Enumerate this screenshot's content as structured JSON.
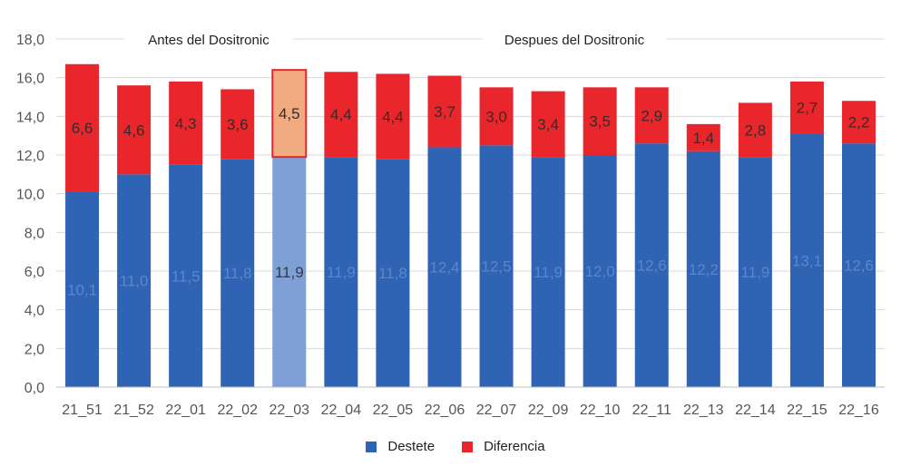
{
  "chart_data": {
    "type": "bar",
    "stacked": true,
    "categories": [
      "21_51",
      "21_52",
      "22_01",
      "22_02",
      "22_03",
      "22_04",
      "22_05",
      "22_06",
      "22_07",
      "22_09",
      "22_10",
      "22_11",
      "22_13",
      "22_14",
      "22_15",
      "22_16"
    ],
    "series": [
      {
        "name": "Destete",
        "color": "#2f63b4",
        "values": [
          10.1,
          11.0,
          11.5,
          11.8,
          11.9,
          11.9,
          11.8,
          12.4,
          12.5,
          11.9,
          12.0,
          12.6,
          12.2,
          11.9,
          13.1,
          12.6
        ],
        "labels": [
          "10,1",
          "11,0",
          "11,5",
          "11,8",
          "11,9",
          "11,9",
          "11,8",
          "12,4",
          "12,5",
          "11,9",
          "12,0",
          "12,6",
          "12,2",
          "11,9",
          "13,1",
          "12,6"
        ]
      },
      {
        "name": "Diferencia",
        "color": "#e8262b",
        "values": [
          6.6,
          4.6,
          4.3,
          3.6,
          4.5,
          4.4,
          4.4,
          3.7,
          3.0,
          3.4,
          3.5,
          2.9,
          1.4,
          2.8,
          2.7,
          2.2
        ],
        "labels": [
          "6,6",
          "4,6",
          "4,3",
          "3,6",
          "4,5",
          "4,4",
          "4,4",
          "3,7",
          "3,0",
          "3,4",
          "3,5",
          "2,9",
          "1,4",
          "2,8",
          "2,7",
          "2,2"
        ]
      }
    ],
    "highlight_category": "22_03",
    "highlight_colors": {
      "Destete": "#7ea0d6",
      "Diferencia": "#efaa80",
      "Diferencia_border": "#e8262b"
    },
    "ylim": [
      0,
      18
    ],
    "yticks": [
      "0,0",
      "2,0",
      "4,0",
      "6,0",
      "8,0",
      "10,0",
      "12,0",
      "14,0",
      "16,0",
      "18,0"
    ],
    "grid": true,
    "legend_position": "bottom",
    "annotations": [
      "Antes del Dositronic",
      "Despues del Dositronic"
    ],
    "title": "",
    "xlabel": "",
    "ylabel": ""
  },
  "legend": {
    "destete_label": "Destete",
    "diferencia_label": "Diferencia",
    "destete_color": "#2f63b4",
    "diferencia_color": "#e8262b"
  }
}
